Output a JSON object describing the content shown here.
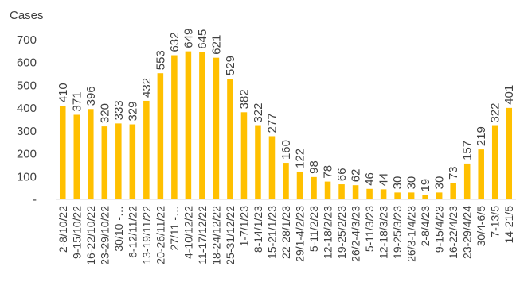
{
  "chart_data": {
    "type": "bar",
    "ylabel": "Cases",
    "xlabel": "",
    "ylim": [
      0,
      700
    ],
    "yticks": [
      {
        "value": 0,
        "label": "-"
      },
      {
        "value": 100,
        "label": "100"
      },
      {
        "value": 200,
        "label": "200"
      },
      {
        "value": 300,
        "label": "300"
      },
      {
        "value": 400,
        "label": "400"
      },
      {
        "value": 500,
        "label": "500"
      },
      {
        "value": 600,
        "label": "600"
      },
      {
        "value": 700,
        "label": "700"
      }
    ],
    "grid": false,
    "bar_color": "#FFC000",
    "categories": [
      "2-8/10/22",
      "9-15/10/22",
      "16-22/10/22",
      "23-29/10/22",
      "30/10 -…",
      "6-12/11/22",
      "13-19/11/22",
      "20-26/11/22",
      "27/11 -…",
      "4-10/12/22",
      "11-17/12/22",
      "18-24/12/22",
      "25-31/12/22",
      "1-7/1/23",
      "8-14/1/23",
      "15-21/1/23",
      "22-28/1/23",
      "29/1-4/2/23",
      "5-11/2/23",
      "12-18/2/23",
      "19-25/2/23",
      "26/2-4/3/23",
      "5-11/3/23",
      "12-18/3/23",
      "19-25/3/23",
      "26/3-1/4/23",
      "2-8/4/23",
      "9-15/4/23",
      "16-22/4/23",
      "23-29/4/24",
      "30/4-6/5",
      "7-13/5",
      "14-21/5"
    ],
    "values": [
      410,
      371,
      396,
      320,
      333,
      329,
      432,
      553,
      632,
      649,
      645,
      621,
      529,
      382,
      322,
      277,
      160,
      122,
      98,
      78,
      66,
      62,
      46,
      44,
      30,
      30,
      19,
      30,
      73,
      157,
      219,
      322,
      401
    ]
  }
}
